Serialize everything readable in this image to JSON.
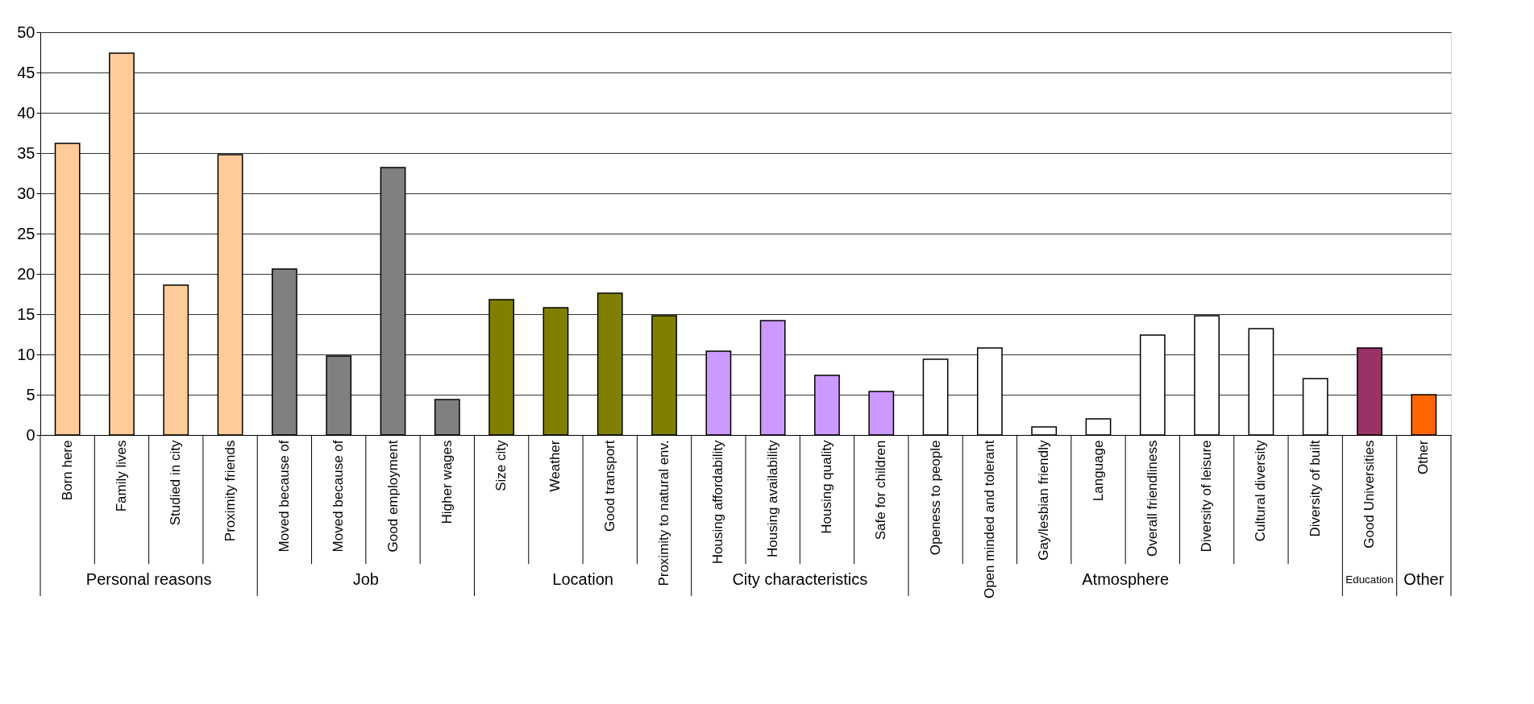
{
  "chart_data": {
    "type": "bar",
    "categories": [
      "Born here",
      "Family lives",
      "Studied in city",
      "Proximity friends",
      "Moved because of",
      "Moved because of",
      "Good employment",
      "Higher wages",
      "Size city",
      "Weather",
      "Good transport",
      "Proximity to natural env.",
      "Housing affordability",
      "Housing availability",
      "Housing quality",
      "Safe for children",
      "Openess to people",
      "Open minded and tolerant",
      "Gay/lesbian friendly",
      "Language",
      "Overall friendliness",
      "Diversity of leisure",
      "Cultural diversity",
      "Diversity of built",
      "Good Universities",
      "Other"
    ],
    "values": [
      36.2,
      47.4,
      18.6,
      34.8,
      20.6,
      9.8,
      33.2,
      4.4,
      16.8,
      15.8,
      17.6,
      14.8,
      10.4,
      14.2,
      7.4,
      5.4,
      9.4,
      10.8,
      1.0,
      2.0,
      12.4,
      14.8,
      13.2,
      7.0,
      10.8,
      5.0
    ],
    "colors": [
      "#ffcc99",
      "#ffcc99",
      "#ffcc99",
      "#ffcc99",
      "#808080",
      "#808080",
      "#808080",
      "#808080",
      "#808000",
      "#808000",
      "#808000",
      "#808000",
      "#cc99ff",
      "#cc99ff",
      "#cc99ff",
      "#cc99ff",
      "#ffffff",
      "#ffffff",
      "#ffffff",
      "#ffffff",
      "#ffffff",
      "#ffffff",
      "#ffffff",
      "#ffffff",
      "#993366",
      "#ff6600"
    ],
    "ylim": [
      0,
      50
    ],
    "yticks": [
      0,
      5,
      10,
      15,
      20,
      25,
      30,
      35,
      40,
      45,
      50
    ],
    "grid": "y",
    "annotations": [
      "Personal reasons",
      "Job",
      "Location",
      "City characteristics",
      "Atmosphere",
      "Education",
      "Other"
    ]
  }
}
